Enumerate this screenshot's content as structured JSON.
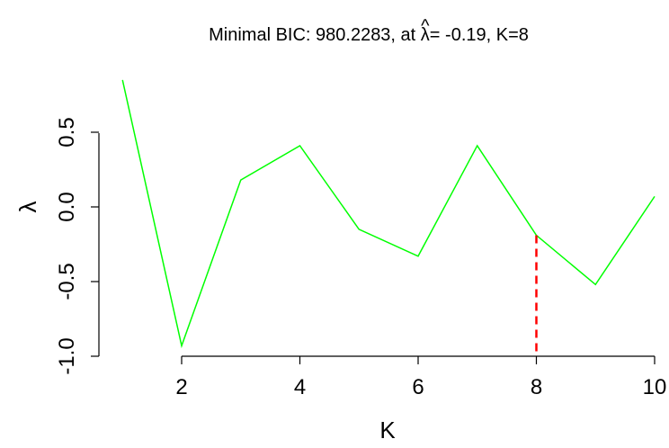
{
  "chart_data": {
    "type": "line",
    "title": {
      "prefix": "Minimal BIC:  980.2283,  at ",
      "symbol": "λ",
      "hat": "^",
      "suffix": "= -0.19,  K=8"
    },
    "xlabel": "K",
    "ylabel": "λ",
    "xlim": [
      0.8,
      10
    ],
    "ylim": [
      -1.0,
      0.85
    ],
    "x_ticks": [
      2,
      4,
      6,
      8,
      10
    ],
    "y_ticks": [
      -1.0,
      -0.5,
      0.0,
      0.5
    ],
    "y_tick_labels": [
      "-1.0",
      "-0.5",
      "0.0",
      "0.5"
    ],
    "x_tick_labels": [
      "2",
      "4",
      "6",
      "8",
      "10"
    ],
    "series": [
      {
        "color": "#00ff00",
        "x": [
          1,
          2,
          3,
          4,
          5,
          6,
          7,
          8,
          9,
          10
        ],
        "y": [
          0.85,
          -0.93,
          0.18,
          0.41,
          -0.15,
          -0.33,
          0.41,
          -0.19,
          -0.52,
          0.07
        ]
      }
    ],
    "marker_line": {
      "x": 8,
      "y": -0.19,
      "color": "#ff0000",
      "style": "dashed"
    },
    "grid": false
  }
}
